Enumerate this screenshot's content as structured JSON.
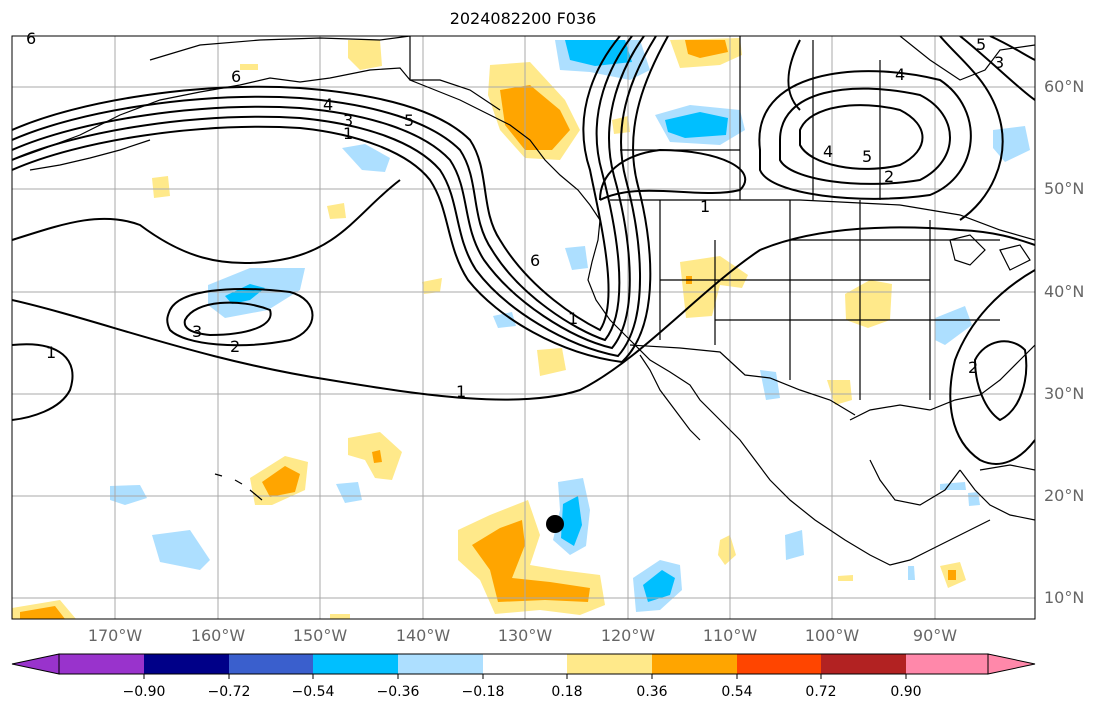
{
  "title": "2024082200 F036",
  "lat_labels": [
    "60°N",
    "50°N",
    "40°N",
    "30°N",
    "20°N",
    "10°N"
  ],
  "lon_labels": [
    "170°W",
    "160°W",
    "150°W",
    "140°W",
    "130°W",
    "120°W",
    "110°W",
    "100°W",
    "90°W"
  ],
  "colorbar": {
    "levels": [
      "−0.90",
      "−0.72",
      "−0.54",
      "−0.36",
      "−0.18",
      "0.18",
      "0.36",
      "0.54",
      "0.72",
      "0.90"
    ],
    "colors": [
      "#9933cc",
      "#000088",
      "#3a5fcd",
      "#00bfff",
      "#addfff",
      "#ffffff",
      "#ffe98a",
      "#ffa500",
      "#ff4500",
      "#b22222",
      "#ff88aa"
    ]
  },
  "contour_labels": [
    "6",
    "6",
    "4",
    "3",
    "1",
    "5",
    "1",
    "6",
    "3",
    "2",
    "1",
    "1",
    "1",
    "2",
    "5",
    "4",
    "4",
    "3",
    "5",
    "2"
  ],
  "colors": {
    "light_blue": "#addfff",
    "blue": "#00bfff",
    "yellow": "#ffe98a",
    "orange": "#ffa500",
    "grid": "#a9a9a9",
    "contour": "#000000"
  },
  "marker": "storm-center-dot"
}
